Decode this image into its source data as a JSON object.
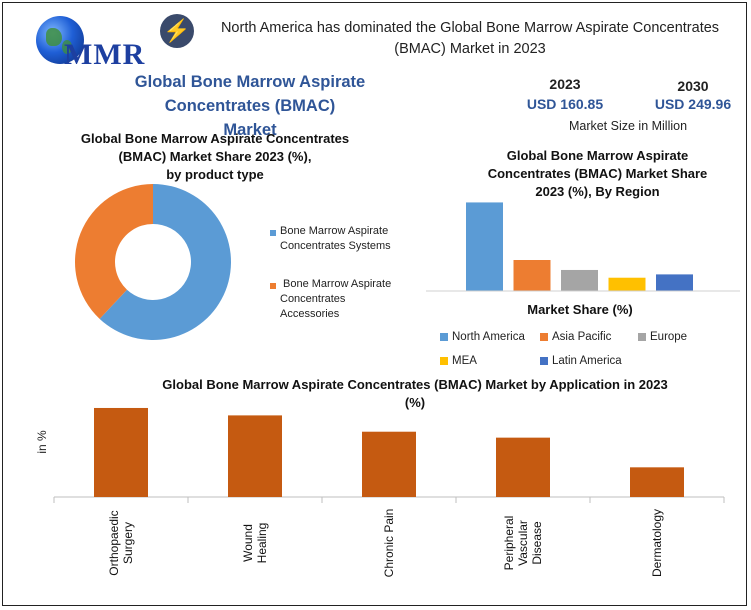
{
  "header": {
    "logo_text": "MMR",
    "headline_line1": "North America has dominated the Global Bone Marrow Aspirate Concentrates",
    "headline_line2": "(BMAC) Market in 2023",
    "title_line1": "Global Bone Marrow Aspirate Concentrates (BMAC)",
    "title_line2": "Market"
  },
  "stats": {
    "year_a": "2023",
    "value_a": "USD 160.85",
    "year_b": "2030",
    "value_b": "USD 249.96",
    "caption": "Market Size in Million"
  },
  "colors": {
    "blue": "#5b9bd5",
    "orange": "#ed7d31",
    "gray": "#a5a5a5",
    "yellow": "#ffc000",
    "darkblue": "#4472c4",
    "rust": "#c55a11"
  },
  "chart_data": [
    {
      "type": "pie",
      "title_line1": "Global Bone Marrow Aspirate Concentrates",
      "title_line2": "(BMAC) Market Share 2023 (%),",
      "title_line3": "by product type",
      "slices": [
        {
          "label_line1": "Bone Marrow Aspirate",
          "label_line2": "Concentrates Systems",
          "value": 62,
          "color": "#5b9bd5"
        },
        {
          "label_line1": "Bone Marrow Aspirate",
          "label_line2": "Concentrates",
          "label_line3": "Accessories",
          "value": 38,
          "color": "#ed7d31"
        }
      ]
    },
    {
      "type": "bar",
      "title_line1": "Global Bone Marrow Aspirate",
      "title_line2": "Concentrates (BMAC) Market Share",
      "title_line3": "2023 (%), By Region",
      "xlabel": "Market Share (%)",
      "categories": [
        "North America",
        "Asia Pacific",
        "Europe",
        "MEA",
        "Latin America"
      ],
      "values": [
        40,
        14,
        9.5,
        6,
        7.5
      ],
      "colors": [
        "#5b9bd5",
        "#ed7d31",
        "#a5a5a5",
        "#ffc000",
        "#4472c4"
      ],
      "ylim": [
        0,
        42
      ]
    },
    {
      "type": "bar",
      "title_line1": "Global Bone Marrow Aspirate Concentrates (BMAC) Market by Application in 2023",
      "title_line2": "(%)",
      "ylabel": "in %",
      "categories": [
        [
          "Orthopaedic",
          "Surgery"
        ],
        [
          "Wound",
          "Healing"
        ],
        [
          "Chronic Pain"
        ],
        [
          "Peripheral",
          "Vascular",
          "Disease"
        ],
        [
          "Dermatology"
        ]
      ],
      "values": [
        30,
        27.5,
        22,
        20,
        10
      ],
      "color": "#c55a11",
      "ylim": [
        0,
        31
      ]
    }
  ]
}
